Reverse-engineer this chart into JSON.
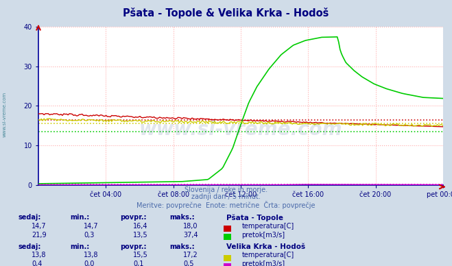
{
  "title": "Pšata - Topole & Velika Krka - Hodoš",
  "title_color": "#000080",
  "bg_color": "#d0dce8",
  "plot_bg_color": "#ffffff",
  "grid_color": "#ffaaaa",
  "xlabel_color": "#000080",
  "ylabel_range": [
    0,
    40
  ],
  "yticks": [
    0,
    10,
    20,
    30
  ],
  "watermark": "www.si-vreme.com",
  "watermark_color": "#1a3a7a",
  "watermark_alpha": 0.13,
  "subtitle1": "Slovenija / reke in morje.",
  "subtitle2": "zadnji dan / 5 minut.",
  "subtitle3": "Meritve: povprečne  Enote: metrične  Črta: povprečje",
  "subtitle_color": "#4a6aaa",
  "xtick_labels": [
    "čet 04:00",
    "čet 08:00",
    "čet 12:00",
    "čet 16:00",
    "čet 20:00",
    "pet 00:00"
  ],
  "n_points": 288,
  "psata_temp_color": "#cc0000",
  "psata_pretok_color": "#00cc00",
  "krka_temp_color": "#cccc00",
  "krka_pretok_color": "#cc00cc",
  "avg_psata_temp": 16.4,
  "avg_psata_pretok": 13.5,
  "avg_krka_temp": 15.5,
  "avg_krka_pretok": 0.1,
  "sidebar_text": "www.si-vreme.com",
  "sidebar_color": "#4a8a9a",
  "col_color": "#000080",
  "header_labels": [
    "sedaj:",
    "min.:",
    "povpr.:",
    "maks.:"
  ],
  "psata_temp_vals": [
    14.7,
    14.7,
    16.4,
    18.0
  ],
  "psata_pretok_vals": [
    21.9,
    0.3,
    13.5,
    37.4
  ],
  "krka_temp_vals": [
    13.8,
    13.8,
    15.5,
    17.2
  ],
  "krka_pretok_vals": [
    0.4,
    0.0,
    0.1,
    0.5
  ],
  "station1": "Pšata - Topole",
  "station2": "Velika Krka - Hodoš",
  "leg_temp": "temperatura[C]",
  "leg_pretok": "pretok[m3/s]"
}
